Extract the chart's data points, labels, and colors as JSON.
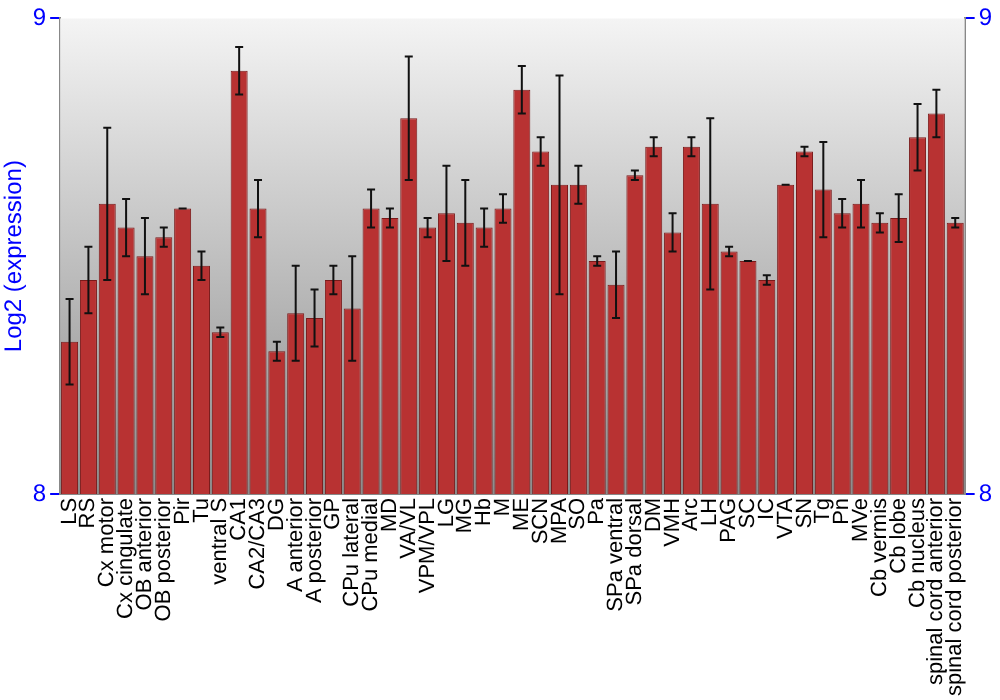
{
  "chart_data": {
    "type": "bar",
    "ylabel": "Log2 (expression)",
    "categories": [
      "LS",
      "RS",
      "Cx motor",
      "Cx cingulate",
      "OB anterior",
      "OB posterior",
      "Pir",
      "Tu",
      "ventral S",
      "CA1",
      "CA2/CA3",
      "DG",
      "A anterior",
      "A posterior",
      "GP",
      "CPu lateral",
      "CPu medial",
      "MD",
      "VA/VL",
      "VPM/VPL",
      "LG",
      "MG",
      "Hb",
      "M",
      "ME",
      "SCN",
      "MPA",
      "SO",
      "Pa",
      "SPa ventral",
      "SPa dorsal",
      "DM",
      "VMH",
      "Arc",
      "LH",
      "PAG",
      "SC",
      "IC",
      "VTA",
      "SN",
      "Tg",
      "Pn",
      "MVe",
      "Cb vermis",
      "Cb lobe",
      "Cb nucleus",
      "spinal cord anterior",
      "spinal cord posterior"
    ],
    "values": [
      8.32,
      8.45,
      8.61,
      8.56,
      8.5,
      8.54,
      8.6,
      8.48,
      8.34,
      8.89,
      8.6,
      8.3,
      8.38,
      8.37,
      8.45,
      8.39,
      8.6,
      8.58,
      8.79,
      8.56,
      8.59,
      8.57,
      8.56,
      8.6,
      8.85,
      8.72,
      8.65,
      8.65,
      8.49,
      8.44,
      8.67,
      8.73,
      8.55,
      8.73,
      8.61,
      8.51,
      8.49,
      8.45,
      8.65,
      8.72,
      8.64,
      8.59,
      8.61,
      8.57,
      8.58,
      8.75,
      8.8,
      8.57
    ],
    "errors": [
      0.09,
      0.07,
      0.16,
      0.06,
      0.08,
      0.02,
      0,
      0.03,
      0.01,
      0.05,
      0.06,
      0.02,
      0.1,
      0.06,
      0.03,
      0.11,
      0.04,
      0.02,
      0.13,
      0.02,
      0.1,
      0.09,
      0.04,
      0.03,
      0.05,
      0.03,
      0.23,
      0.04,
      0.01,
      0.07,
      0.01,
      0.02,
      0.04,
      0.02,
      0.18,
      0.01,
      0,
      0.01,
      0,
      0.01,
      0.1,
      0.03,
      0.05,
      0.02,
      0.05,
      0.07,
      0.05,
      0.01
    ],
    "color": "#b83232",
    "ylim": [
      8,
      9
    ],
    "yticks": [
      8,
      9
    ],
    "y2lim": [
      8,
      9
    ],
    "y2ticks": [
      8,
      9
    ],
    "grid": false,
    "legend": false
  }
}
